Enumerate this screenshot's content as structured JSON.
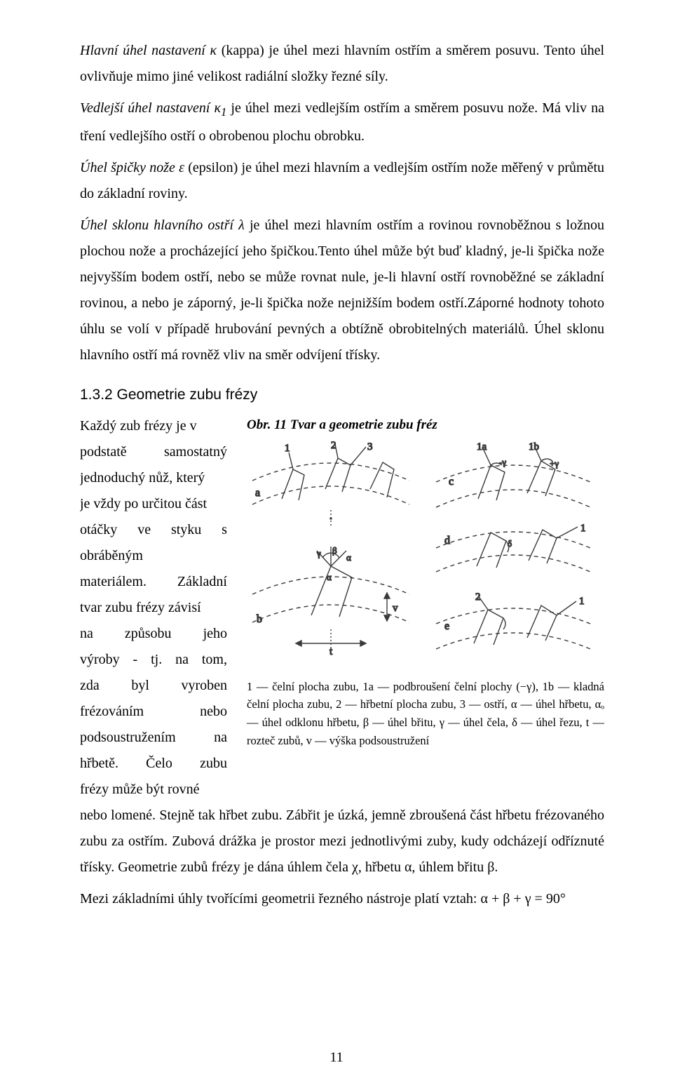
{
  "paragraphs": {
    "p1_a": "Hlavní úhel nastavení κ",
    "p1_b": " (kappa) je úhel mezi hlavním ostřím a směrem posuvu. Tento úhel ovlivňuje mimo jiné velikost radiální složky řezné síly.",
    "p2_a": "Vedlejší úhel nastavení κ",
    "p2_sub": "1",
    "p2_b": " je úhel mezi vedlejším ostřím a směrem posuvu nože. Má vliv na tření vedlejšího ostří o obrobenou plochu obrobku.",
    "p3_a": "Úhel špičky nože ε",
    "p3_b": " (epsilon) je úhel mezi hlavním a vedlejším ostřím nože měřený v průmětu do základní roviny.",
    "p4_a": " Úhel sklonu hlavního ostří λ",
    "p4_b": " je úhel mezi hlavním ostřím a rovinou rovnoběžnou s ložnou plochou nože a procházející jeho špičkou.Tento úhel může být buď kladný, je-li špička nože nejvyšším bodem ostří, nebo se může rovnat nule, je-li hlavní ostří rovnoběžné se základní rovinou, a nebo je záporný, je-li špička nože nejnižším bodem ostří.Záporné hodnoty tohoto úhlu se volí v případě hrubování pevných a obtížně obrobitelných materiálů. Úhel sklonu hlavního ostří má rovněž vliv na směr odvíjení třísky."
  },
  "section_heading": "1.3.2  Geometrie zubu frézy",
  "left_column_lines": [
    [
      "Každý zub frézy je v"
    ],
    [
      "podstatě",
      "samostatný"
    ],
    [
      "jednoduchý nůž, který"
    ],
    [
      "je vždy po určitou část"
    ],
    [
      "otáčky",
      "ve",
      "styku",
      "s"
    ],
    [
      "obráběným"
    ],
    [
      "materiálem.",
      "Základní"
    ],
    [
      "tvar zubu frézy závisí"
    ],
    [
      "na",
      "způsobu",
      "jeho"
    ],
    [
      "výroby",
      "-",
      "tj.",
      "na",
      "tom,"
    ],
    [
      "zda",
      "byl",
      "vyroben"
    ],
    [
      "frézováním",
      "nebo"
    ],
    [
      "podsoustružením",
      "na"
    ],
    [
      "hřbetě.",
      "Čelo",
      "zubu"
    ],
    [
      "frézy může být rovné"
    ]
  ],
  "figure": {
    "caption": "Obr. 11 Tvar a geometrie zubu fréz",
    "labels": {
      "a": "a",
      "b": "b",
      "c": "c",
      "d": "d",
      "e": "e",
      "n1": "1",
      "n1a": "1a",
      "n1b": "1b",
      "n2": "2",
      "n3": "3",
      "t": "t",
      "v": "v",
      "alpha": "α",
      "beta": "β",
      "gamma": "γ",
      "delta": "δ",
      "alpha_o": "α",
      "gamma_neg": "-γ",
      "gamma_plus": "+γ"
    },
    "legend": "1 — čelní plocha zubu, 1a — podbroušení čelní plochy (−γ), 1b — kladná čelní plocha zubu, 2 — hřbetní plocha zubu, 3 — ostří, α — úhel hřbetu, αₒ — úhel odklonu hřbetu, β — úhel břitu, γ — úhel čela, δ — úhel řezu, t — rozteč zubů, v — výška podsoustružení",
    "colors": {
      "stroke": "#3a3a3a",
      "dash": "#3a3a3a",
      "bg": "#ffffff"
    }
  },
  "after_wrap": {
    "p5": "nebo lomené. Stejně tak hřbet zubu. Zábřit je úzká, jemně zbroušená část hřbetu frézovaného zubu za ostřím. Zubová drážka je prostor mezi jednotlivými zuby, kudy odcházejí odříznuté třísky. Geometrie zubů frézy je dána úhlem čela χ, hřbetu α, úhlem břitu β.",
    "p6": " Mezi základními úhly tvořícími geometrii řezného nástroje platí vztah: α + β + γ = 90°"
  },
  "page_number": "11"
}
